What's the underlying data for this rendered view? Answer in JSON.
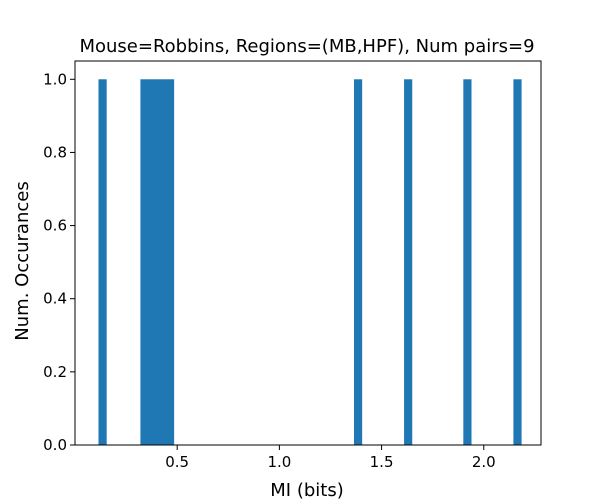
{
  "chart_data": {
    "type": "bar",
    "title": "Mouse=Robbins, Regions=(MB,HPF), Num pairs=9",
    "xlabel": "MI (bits)",
    "ylabel": "Num. Occurances",
    "xlim": [
      0.0,
      2.28
    ],
    "ylim": [
      0,
      1.05
    ],
    "x_ticks": [
      0.5,
      1.0,
      1.5,
      2.0
    ],
    "x_tick_labels": [
      "0.5",
      "1.0",
      "1.5",
      "2.0"
    ],
    "y_ticks": [
      0.0,
      0.2,
      0.4,
      0.6,
      0.8,
      1.0
    ],
    "y_tick_labels": [
      "0.0",
      "0.2",
      "0.4",
      "0.6",
      "0.8",
      "1.0"
    ],
    "bar_color": "#1f77b4",
    "bars": [
      {
        "x0": 0.115,
        "x1": 0.155,
        "value": 1.0
      },
      {
        "x0": 0.32,
        "x1": 0.485,
        "value": 1.0
      },
      {
        "x0": 1.365,
        "x1": 1.405,
        "value": 1.0
      },
      {
        "x0": 1.61,
        "x1": 1.65,
        "value": 1.0
      },
      {
        "x0": 1.9,
        "x1": 1.94,
        "value": 1.0
      },
      {
        "x0": 2.145,
        "x1": 2.185,
        "value": 1.0
      }
    ],
    "grid": false,
    "legend": "none"
  }
}
